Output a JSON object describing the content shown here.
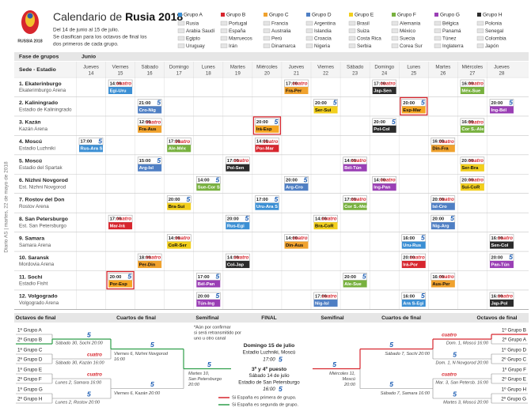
{
  "side_label": "Diario AS | martes, 22 de mayo de 2018",
  "header": {
    "logo": "RUSSIA 2018",
    "title_pre": "Calendario de ",
    "title_bold": "Rusia 2018",
    "lines": [
      "Del 14 de junio al 15 de julio.",
      "Se clasifican para los octavos de final los",
      "dos primeros de cada grupo."
    ]
  },
  "groups": [
    {
      "name": "Grupo A",
      "color": "#3b8fd4",
      "teams": [
        "Rusia",
        "Arabia Saudí",
        "Egipto",
        "Uruguay"
      ]
    },
    {
      "name": "Grupo B",
      "color": "#d7262e",
      "teams": [
        "Portugal",
        "España",
        "Marruecos",
        "Irán"
      ]
    },
    {
      "name": "Grupo C",
      "color": "#f0a22e",
      "teams": [
        "Francia",
        "Australia",
        "Perú",
        "Dinamarca"
      ]
    },
    {
      "name": "Grupo D",
      "color": "#4f7fc4",
      "teams": [
        "Argentina",
        "Islandia",
        "Croacia",
        "Nigeria"
      ]
    },
    {
      "name": "Grupo E",
      "color": "#f2cf1d",
      "teams": [
        "Brasil",
        "Suiza",
        "Costa Rica",
        "Serbia"
      ]
    },
    {
      "name": "Grupo F",
      "color": "#78b13f",
      "teams": [
        "Alemania",
        "México",
        "Suecia",
        "Corea Sur"
      ]
    },
    {
      "name": "Grupo G",
      "color": "#9a3fb5",
      "teams": [
        "Bélgica",
        "Panamá",
        "Túnez",
        "Inglaterra"
      ]
    },
    {
      "name": "Grupo H",
      "color": "#2b2b2b",
      "teams": [
        "Polonia",
        "Senegal",
        "Colombia",
        "Japón"
      ]
    }
  ],
  "schedule": {
    "phase": "Fase de grupos",
    "month": "Junio",
    "venue_header": "Sede - Estadio",
    "highlight_border": "#d7262e",
    "days": [
      {
        "weekday": "Jueves",
        "day": 14
      },
      {
        "weekday": "Viernes",
        "day": 15
      },
      {
        "weekday": "Sábado",
        "day": 16
      },
      {
        "weekday": "Domingo",
        "day": 17
      },
      {
        "weekday": "Lunes",
        "day": 18
      },
      {
        "weekday": "Martes",
        "day": 19
      },
      {
        "weekday": "Miércoles",
        "day": 20
      },
      {
        "weekday": "Jueves",
        "day": 21
      },
      {
        "weekday": "Viernes",
        "day": 22
      },
      {
        "weekday": "Sábado",
        "day": 23
      },
      {
        "weekday": "Domingo",
        "day": 24
      },
      {
        "weekday": "Lunes",
        "day": 25
      },
      {
        "weekday": "Martes",
        "day": 26
      },
      {
        "weekday": "Miércoles",
        "day": 27
      },
      {
        "weekday": "Jueves",
        "day": 28
      }
    ],
    "venues": [
      {
        "city": "1. Ekaterinburgo",
        "stadium": "Ekaterimburgo Arena",
        "matches": [
          {
            "day": 15,
            "time": "14:00",
            "channel": "cuatro",
            "teams": "Egi-Uru",
            "color": "#3b8fd4"
          },
          {
            "day": 21,
            "time": "17:00",
            "channel": "cuatro",
            "teams": "Fra-Per",
            "color": "#f0a22e"
          },
          {
            "day": 24,
            "time": "17:00",
            "channel": "cuatro",
            "teams": "Jap-Sen",
            "color": "#2b2b2b"
          },
          {
            "day": 27,
            "time": "16:00",
            "channel": "cuatro",
            "teams": "Méx-Sue",
            "color": "#78b13f"
          }
        ]
      },
      {
        "city": "2. Kaliningrado",
        "stadium": "Estadio de Kaliningrado",
        "matches": [
          {
            "day": 16,
            "time": "21:00",
            "channel": "5",
            "teams": "Cro-Nig",
            "color": "#4f7fc4"
          },
          {
            "day": 22,
            "time": "20:00",
            "channel": "5",
            "teams": "Ser-Sui",
            "color": "#f2cf1d"
          },
          {
            "day": 25,
            "time": "20:00",
            "channel": "5",
            "teams": "Esp-Mar",
            "color": "#f5a623",
            "highlight": true
          },
          {
            "day": 28,
            "time": "20:00",
            "channel": "5",
            "teams": "Ing-Bél",
            "color": "#9a3fb5"
          }
        ]
      },
      {
        "city": "3. Kazán",
        "stadium": "Kazán Arena",
        "matches": [
          {
            "day": 16,
            "time": "12:00",
            "channel": "cuatro",
            "teams": "Fra-Aus",
            "color": "#f0a22e"
          },
          {
            "day": 20,
            "time": "20:00",
            "channel": "5",
            "teams": "Irá-Esp",
            "color": "#f5a623",
            "highlight": true
          },
          {
            "day": 24,
            "time": "20:00",
            "channel": "5",
            "teams": "Pol-Col",
            "color": "#2b2b2b"
          },
          {
            "day": 27,
            "time": "16:00",
            "channel": "cuatro",
            "teams": "Cor S.-Ale",
            "color": "#78b13f"
          }
        ]
      },
      {
        "city": "4. Moscú",
        "stadium": "Estadio Luzhniki",
        "matches": [
          {
            "day": 14,
            "time": "17:00",
            "channel": "5",
            "teams": "Rus-Ara S",
            "color": "#3b8fd4"
          },
          {
            "day": 17,
            "time": "17:00",
            "channel": "cuatro",
            "teams": "Ale-Méx",
            "color": "#78b13f"
          },
          {
            "day": 20,
            "time": "14:00",
            "channel": "cuatro",
            "teams": "Por-Mar",
            "color": "#d7262e"
          },
          {
            "day": 26,
            "time": "16:00",
            "channel": "cuatro",
            "teams": "Din-Fra",
            "color": "#f0a22e"
          }
        ]
      },
      {
        "city": "5. Moscú",
        "stadium": "Estadio del Spartak",
        "matches": [
          {
            "day": 16,
            "time": "15:00",
            "channel": "5",
            "teams": "Arg-Isl",
            "color": "#4f7fc4"
          },
          {
            "day": 19,
            "time": "17:00",
            "channel": "cuatro",
            "teams": "Pol-Sen",
            "color": "#2b2b2b"
          },
          {
            "day": 23,
            "time": "14:00",
            "channel": "cuatro",
            "teams": "Bél-Tún",
            "color": "#9a3fb5"
          },
          {
            "day": 27,
            "time": "20:00",
            "channel": "cuatro",
            "teams": "Ser-Bra",
            "color": "#f2cf1d"
          }
        ]
      },
      {
        "city": "6. Nizhni Novgorod",
        "stadium": "Est. Nizhni Novgorod",
        "matches": [
          {
            "day": 18,
            "time": "14:00",
            "channel": "5",
            "teams": "Sue-Cor S",
            "color": "#78b13f"
          },
          {
            "day": 21,
            "time": "20:00",
            "channel": "5",
            "teams": "Arg-Cro",
            "color": "#4f7fc4"
          },
          {
            "day": 24,
            "time": "14:00",
            "channel": "cuatro",
            "teams": "Ing-Pan",
            "color": "#9a3fb5"
          },
          {
            "day": 27,
            "time": "20:00",
            "channel": "cuatro",
            "teams": "Sui-CoR",
            "color": "#f2cf1d"
          }
        ]
      },
      {
        "city": "7. Rostov del Don",
        "stadium": "Rostov Arena",
        "matches": [
          {
            "day": 17,
            "time": "20:00",
            "channel": "5",
            "teams": "Bra-Sui",
            "color": "#f2cf1d"
          },
          {
            "day": 20,
            "time": "17:00",
            "channel": "5",
            "teams": "Uru-Ara S",
            "color": "#3b8fd4"
          },
          {
            "day": 23,
            "time": "17:00",
            "channel": "cuatro",
            "teams": "Cor S.-Méx",
            "color": "#78b13f"
          },
          {
            "day": 26,
            "time": "20:00",
            "channel": "cuatro",
            "teams": "Isl-Cro",
            "color": "#4f7fc4"
          }
        ]
      },
      {
        "city": "8. San Petersburgo",
        "stadium": "Est. San Petersburgo",
        "matches": [
          {
            "day": 15,
            "time": "17:00",
            "channel": "cuatro",
            "teams": "Mar-Irá",
            "color": "#d7262e"
          },
          {
            "day": 19,
            "time": "20:00",
            "channel": "5",
            "teams": "Rus-Egi",
            "color": "#3b8fd4"
          },
          {
            "day": 22,
            "time": "14:00",
            "channel": "cuatro",
            "teams": "Bra-CoR",
            "color": "#f2cf1d"
          },
          {
            "day": 26,
            "time": "20:00",
            "channel": "5",
            "teams": "Nig-Arg",
            "color": "#4f7fc4"
          }
        ]
      },
      {
        "city": "9. Samara",
        "stadium": "Samara Arena",
        "matches": [
          {
            "day": 17,
            "time": "14:00",
            "channel": "cuatro",
            "teams": "CoR-Ser",
            "color": "#f2cf1d"
          },
          {
            "day": 21,
            "time": "14:00",
            "channel": "cuatro",
            "teams": "Din-Aus",
            "color": "#f0a22e"
          },
          {
            "day": 25,
            "time": "16:00",
            "channel": "5",
            "teams": "Uru-Rus",
            "color": "#3b8fd4"
          },
          {
            "day": 28,
            "time": "16:00",
            "channel": "cuatro",
            "teams": "Sen-Col",
            "color": "#2b2b2b"
          }
        ]
      },
      {
        "city": "10. Saransk",
        "stadium": "Mordovia Arena",
        "matches": [
          {
            "day": 16,
            "time": "18:00",
            "channel": "cuatro",
            "teams": "Per-Din",
            "color": "#f0a22e"
          },
          {
            "day": 19,
            "time": "14:00",
            "channel": "cuatro",
            "teams": "Col-Jap",
            "color": "#2b2b2b"
          },
          {
            "day": 25,
            "time": "20:00",
            "channel": "cuatro",
            "teams": "Irá-Por",
            "color": "#d7262e"
          },
          {
            "day": 28,
            "time": "20:00",
            "channel": "5",
            "teams": "Pan-Tún",
            "color": "#9a3fb5"
          }
        ]
      },
      {
        "city": "11. Sochi",
        "stadium": "Estadio Fisht",
        "matches": [
          {
            "day": 15,
            "time": "20:00",
            "channel": "5",
            "teams": "Por-Esp",
            "color": "#f5a623",
            "highlight": true
          },
          {
            "day": 18,
            "time": "17:00",
            "channel": "5",
            "teams": "Bél-Pan",
            "color": "#9a3fb5"
          },
          {
            "day": 23,
            "time": "20:00",
            "channel": "5",
            "teams": "Ale-Sue",
            "color": "#78b13f"
          },
          {
            "day": 26,
            "time": "16:00",
            "channel": "cuatro",
            "teams": "Aus-Per",
            "color": "#f0a22e"
          }
        ]
      },
      {
        "city": "12. Volgogrado",
        "stadium": "Volgogrado Arena",
        "matches": [
          {
            "day": 18,
            "time": "20:00",
            "channel": "5",
            "teams": "Tún-Ing",
            "color": "#9a3fb5"
          },
          {
            "day": 22,
            "time": "17:00",
            "channel": "cuatro",
            "teams": "Nig-Isl",
            "color": "#4f7fc4"
          },
          {
            "day": 25,
            "time": "16:00",
            "channel": "5",
            "teams": "Ara S-Egi",
            "color": "#3b8fd4"
          },
          {
            "day": 28,
            "time": "16:00",
            "channel": "cuatro",
            "teams": "Jap-Pol",
            "color": "#2b2b2b"
          }
        ]
      }
    ]
  },
  "knockout": {
    "headers": [
      "Octavos de final",
      "Cuartos de final",
      "Semifinal",
      "FINAL",
      "Semifinal",
      "Cuartos de final",
      "Octavos de final"
    ],
    "left": {
      "r16": [
        {
          "teams": [
            "1ª Grupo A",
            "2ª Grupo B"
          ],
          "info": "Sábado 30, Sochi 20:00",
          "channel": "5"
        },
        {
          "teams": [
            "1ª Grupo C",
            "2ª Grupo D"
          ],
          "info": "Sábado 30, Kazán 16:00",
          "channel": "cuatro"
        },
        {
          "teams": [
            "1ª Grupo E",
            "2ª Grupo F"
          ],
          "info": "Lunes 2, Samara 16:00",
          "channel": "cuatro"
        },
        {
          "teams": [
            "1ª Grupo G",
            "2ª Grupo H"
          ],
          "info": "Lunes 2, Rostov 20:00",
          "channel": "5"
        }
      ],
      "qf": [
        {
          "info": [
            "Viernes 6, Nizhni Novgorod",
            "16:00"
          ],
          "channel": "5"
        },
        {
          "info": [
            "Viernes 6, Kazán 20:00"
          ],
          "channel": "5"
        }
      ],
      "sf": {
        "info": [
          "Martes 10,",
          "San Petersburgo",
          "20:00"
        ],
        "channel": "5"
      }
    },
    "right": {
      "r16": [
        {
          "teams": [
            "1º Grupo B",
            "2º Grupo A"
          ],
          "info": "Dom. 1, Moscú 16:00",
          "channel": "cuatro"
        },
        {
          "teams": [
            "1º Grupo D",
            "2º Grupo C"
          ],
          "info": "Dom. 1, N Novgorod 20:00",
          "channel": "5"
        },
        {
          "teams": [
            "1º Grupo F",
            "2º Grupo E"
          ],
          "info": "Mar. 3, San Petersb. 16:00",
          "channel": "cuatro"
        },
        {
          "teams": [
            "1º Grupo H",
            "2º Grupo G"
          ],
          "info": "Martes 3, Moscú 20:00",
          "channel": "5"
        }
      ],
      "qf": [
        {
          "info": [
            "Sábado 7, Sochi 20:00"
          ],
          "channel": "5"
        },
        {
          "info": [
            "Sábado 7, Samara 16:00"
          ],
          "channel": "5"
        }
      ],
      "sf": {
        "info": [
          "Miércoles 11,",
          "Moscú",
          "20:00"
        ],
        "channel": "5"
      }
    },
    "note": [
      "*Aún por confirmar",
      "si será retransmitido por",
      "uno u otro canal"
    ],
    "final": {
      "lines": [
        "Domingo 15 de julio",
        "Estadio Luzhniki, Moscú",
        "17:00"
      ],
      "channel": "5"
    },
    "third": {
      "lines": [
        "3º y 4º puesto",
        "Sábado 14 de julio",
        "Estadio de San Petersburgo",
        "16:00"
      ],
      "channel": "5"
    },
    "legend": [
      {
        "text": "Si España es primera de grupo.",
        "color": "#d7262e"
      },
      {
        "text": "Si España es segunda de grupo.",
        "color": "#2e9e4a"
      }
    ]
  }
}
